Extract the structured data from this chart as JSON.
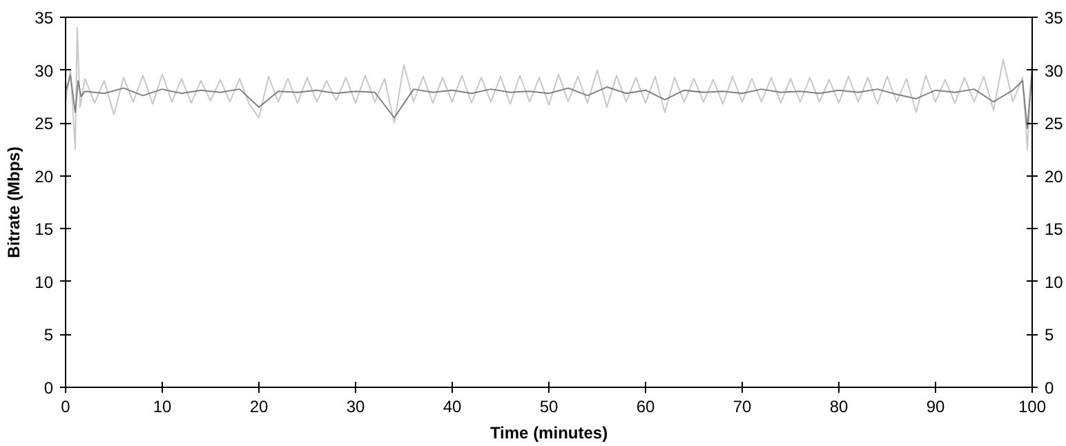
{
  "chart_data": {
    "type": "line",
    "xlabel": "Time (minutes)",
    "ylabel": "Bitrate (Mbps)",
    "xlim": [
      0,
      100
    ],
    "xticks": [
      0,
      10,
      20,
      30,
      40,
      50,
      60,
      70,
      80,
      90,
      100
    ],
    "ylim": [
      0,
      35
    ],
    "yticks": [
      0,
      5,
      10,
      15,
      20,
      25,
      30,
      35
    ],
    "y2lim": [
      0,
      35
    ],
    "y2ticks": [
      0,
      5,
      10,
      15,
      20,
      25,
      30,
      35
    ],
    "grid": false,
    "marker": "none",
    "line_style": "solid",
    "series": [
      {
        "color": "#c8c8c8",
        "x": [
          0,
          0.5,
          1,
          1.2,
          1.5,
          2,
          3,
          4,
          5,
          6,
          7,
          8,
          9,
          10,
          11,
          12,
          13,
          14,
          15,
          16,
          17,
          18,
          19,
          20,
          21,
          22,
          23,
          24,
          25,
          26,
          27,
          28,
          29,
          30,
          31,
          32,
          33,
          34,
          35,
          36,
          37,
          38,
          39,
          40,
          41,
          42,
          43,
          44,
          45,
          46,
          47,
          48,
          49,
          50,
          51,
          52,
          53,
          54,
          55,
          56,
          57,
          58,
          59,
          60,
          61,
          62,
          63,
          64,
          65,
          66,
          67,
          68,
          69,
          70,
          71,
          72,
          73,
          74,
          75,
          76,
          77,
          78,
          79,
          80,
          81,
          82,
          83,
          84,
          85,
          86,
          87,
          88,
          89,
          90,
          91,
          92,
          93,
          94,
          95,
          96,
          97,
          98,
          99,
          99.5,
          100
        ],
        "values": [
          27,
          30,
          22.5,
          34,
          26.5,
          29.2,
          26.9,
          29,
          25.8,
          29.3,
          27,
          29.5,
          26.8,
          29.6,
          27,
          29.2,
          26.9,
          29,
          27.1,
          29.1,
          27,
          29.2,
          26.8,
          25.5,
          29.4,
          27,
          29.2,
          26.9,
          29.3,
          27,
          29,
          27.1,
          29.3,
          26.9,
          29.5,
          27,
          29.2,
          25,
          30.5,
          27,
          29.4,
          26.9,
          29.3,
          27,
          29.5,
          26.9,
          29.3,
          27,
          29.4,
          26.8,
          29.5,
          27,
          29.3,
          26.7,
          29.6,
          27,
          29.4,
          26.9,
          30,
          26.5,
          29.5,
          27,
          29.3,
          26.9,
          29.4,
          26,
          29.3,
          27,
          29.2,
          27,
          29.1,
          26.8,
          29.4,
          27,
          29.2,
          27,
          29.3,
          26.9,
          29.2,
          27,
          29.3,
          27,
          29.1,
          26.9,
          29.4,
          27,
          29.3,
          26.8,
          29.4,
          27,
          29.2,
          26,
          29.5,
          27,
          29.1,
          26.9,
          29.3,
          27,
          29.4,
          26.2,
          31,
          27,
          29.3,
          22.5,
          31
        ]
      },
      {
        "color": "#808080",
        "x": [
          0,
          0.5,
          1,
          1.3,
          1.6,
          2,
          4,
          6,
          8,
          10,
          12,
          14,
          16,
          18,
          20,
          22,
          24,
          26,
          28,
          30,
          32,
          34,
          36,
          38,
          40,
          42,
          44,
          46,
          48,
          50,
          52,
          54,
          56,
          58,
          60,
          62,
          64,
          66,
          68,
          70,
          72,
          74,
          76,
          78,
          80,
          82,
          84,
          86,
          88,
          90,
          92,
          94,
          96,
          98,
          99,
          99.5,
          100
        ],
        "values": [
          28,
          29.5,
          26,
          29,
          27.5,
          28,
          27.8,
          28.3,
          27.6,
          28.2,
          27.8,
          28.1,
          27.9,
          28.2,
          26.5,
          28,
          27.9,
          28.1,
          27.8,
          28,
          27.9,
          25.5,
          28.2,
          27.9,
          28.1,
          27.8,
          28.2,
          27.9,
          28,
          27.8,
          28.3,
          27.6,
          28.4,
          27.8,
          28.1,
          27.2,
          28.1,
          27.9,
          28,
          27.8,
          28.2,
          27.9,
          28,
          27.8,
          28.1,
          27.9,
          28.2,
          27.7,
          27.3,
          28.1,
          27.9,
          28.2,
          27,
          28.1,
          29,
          24.5,
          30
        ]
      }
    ]
  }
}
